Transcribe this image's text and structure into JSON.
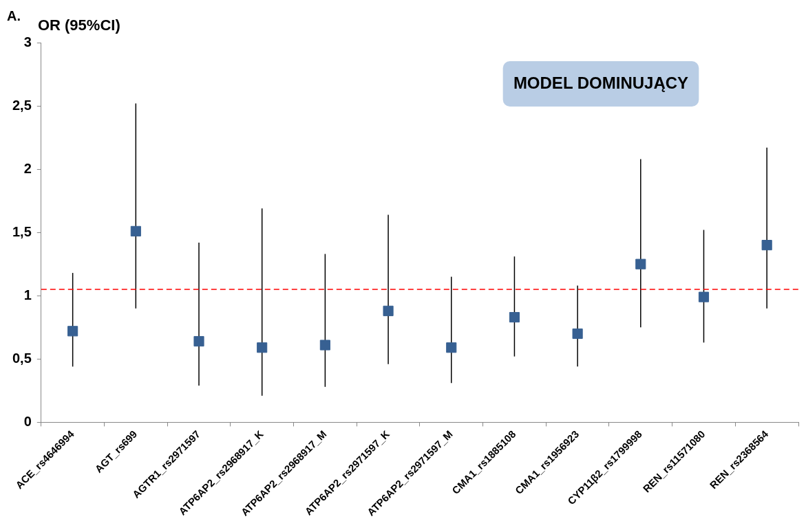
{
  "chart_data": {
    "type": "scatter",
    "ylabel": "OR (95%CI)",
    "annotations": [
      "A.",
      "MODEL DOMINUJĄCY"
    ],
    "categories": [
      "ACE_rs4646994",
      "AGT_rs699",
      "AGTR1_rs2971597",
      "ATP6AP2_rs2968917_K",
      "ATP6AP2_rs2968917_M",
      "ATP6AP2_rs2971597_K",
      "ATP6AP2_rs2971597_M",
      "CMA1_rs1885108",
      "CMA1_rs1956923",
      "CYP11β2_rs1799998",
      "REN_rs11571080",
      "REN_rs2368564"
    ],
    "values": [
      0.72,
      1.51,
      0.64,
      0.59,
      0.61,
      0.88,
      0.59,
      0.83,
      0.7,
      1.25,
      0.99,
      1.4
    ],
    "errors": [
      [
        0.44,
        1.18
      ],
      [
        0.9,
        2.52
      ],
      [
        0.29,
        1.42
      ],
      [
        0.21,
        1.69
      ],
      [
        0.28,
        1.33
      ],
      [
        0.46,
        1.64
      ],
      [
        0.31,
        1.15
      ],
      [
        0.52,
        1.31
      ],
      [
        0.44,
        1.08
      ],
      [
        0.75,
        2.08
      ],
      [
        0.63,
        1.52
      ],
      [
        0.9,
        2.17
      ]
    ],
    "color": "#376092",
    "marker": "square",
    "ylim": [
      0,
      3
    ],
    "yticks": [
      0,
      {
        "value": 0.5,
        "label": "0,5"
      },
      1,
      {
        "value": 1.5,
        "label": "1,5"
      },
      2,
      {
        "value": 2.5,
        "label": "2,5"
      },
      3
    ],
    "ref_lines": [
      {
        "axis": "y",
        "value": 1.05,
        "color": "#ff0000",
        "line_style": "dashed"
      }
    ],
    "grid": false,
    "legend": false
  }
}
